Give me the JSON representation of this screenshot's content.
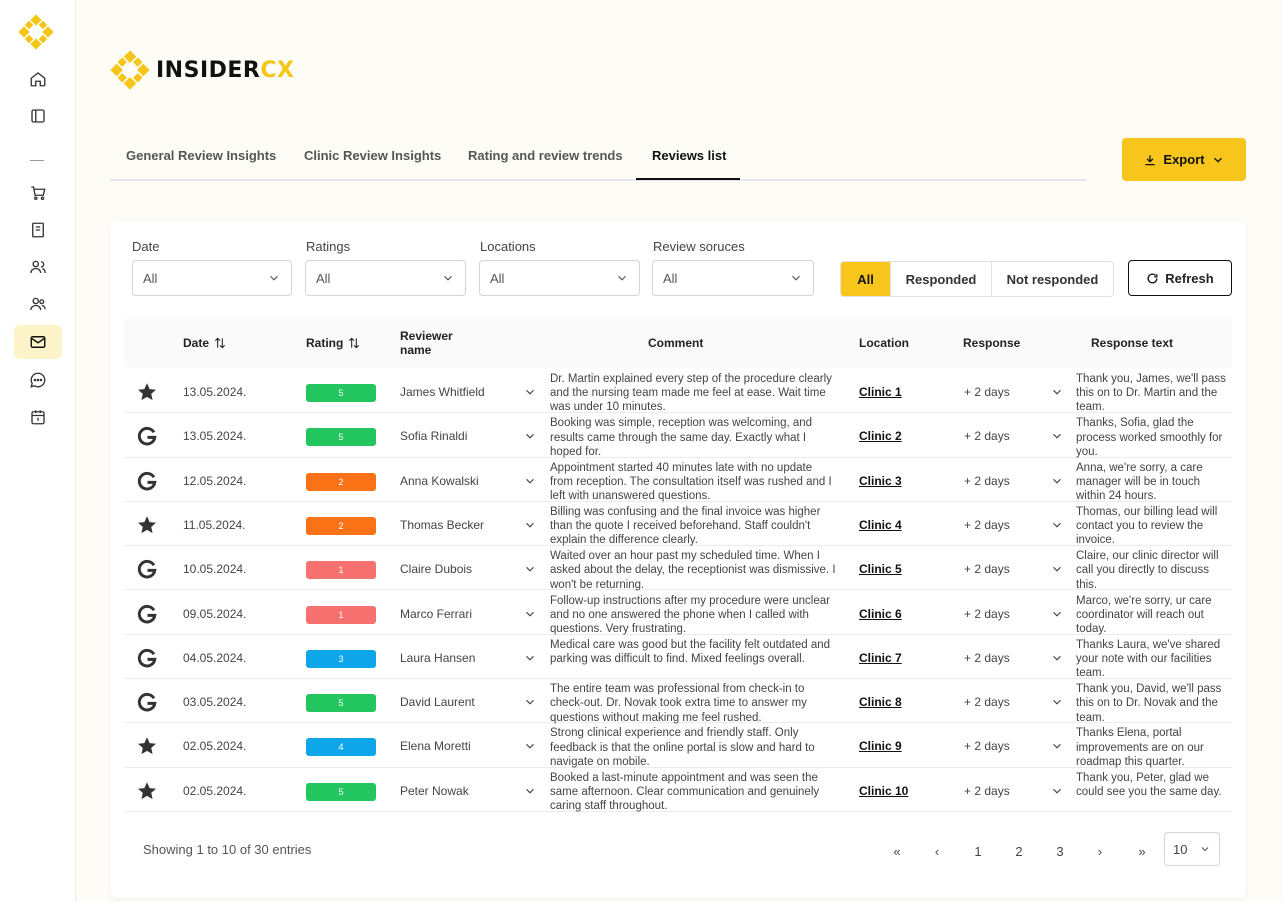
{
  "brand": {
    "name_main": "INSIDER",
    "name_accent": "CX"
  },
  "sidebar": {
    "items": [
      {
        "icon": "home-icon"
      },
      {
        "icon": "layout-icon"
      },
      {
        "icon": "cart-icon"
      },
      {
        "icon": "book-icon"
      },
      {
        "icon": "users-icon"
      },
      {
        "icon": "team-icon"
      },
      {
        "icon": "mail-icon",
        "active": true
      },
      {
        "icon": "chat-icon"
      },
      {
        "icon": "calendar-icon"
      }
    ]
  },
  "tabs": [
    {
      "label": "General Review Insights"
    },
    {
      "label": "Clinic Review Insights"
    },
    {
      "label": "Rating and review trends"
    },
    {
      "label": "Reviews list",
      "active": true
    }
  ],
  "export": {
    "label": "Export"
  },
  "filters": {
    "date": {
      "label": "Date",
      "value": "All"
    },
    "ratings": {
      "label": "Ratings",
      "value": "All"
    },
    "locations": {
      "label": "Locations",
      "value": "All"
    },
    "sources": {
      "label": "Review soruces",
      "value": "All"
    }
  },
  "segment": {
    "all": "All",
    "responded": "Responded",
    "not_responded": "Not responded"
  },
  "refresh": {
    "label": "Refresh"
  },
  "table": {
    "headers": {
      "date": "Date",
      "rating": "Rating",
      "reviewer": "Reviewer name",
      "comment": "Comment",
      "location": "Location",
      "response": "Response",
      "response_text": "Response text"
    },
    "rows": [
      {
        "source": "star",
        "date": "13.05.2024.",
        "rating": "5",
        "rating_color": "#22c55e",
        "reviewer": "James Whitfield",
        "comment": "Dr. Martin explained every step of the procedure clearly and the nursing team made me feel at ease. Wait time was under 10 minutes.",
        "location": "Clinic 1",
        "response": "+ 2 days",
        "response_text": "Thank you, James, we'll pass this on to Dr. Martin and the team."
      },
      {
        "source": "google",
        "date": "13.05.2024.",
        "rating": "5",
        "rating_color": "#22c55e",
        "reviewer": "Sofia Rinaldi",
        "comment": "Booking was simple, reception was welcoming, and results came through the same day. Exactly what I hoped for.",
        "location": "Clinic 2",
        "response": "+ 2 days",
        "response_text": "Thanks, Sofia, glad the process worked smoothly for you."
      },
      {
        "source": "google",
        "date": "12.05.2024.",
        "rating": "2",
        "rating_color": "#f97316",
        "reviewer": "Anna Kowalski",
        "comment": "Appointment started 40 minutes late with no update from reception. The consultation itself was rushed and I left with unanswered questions.",
        "location": "Clinic 3",
        "response": "+ 2 days",
        "response_text": "Anna, we're sorry, a care manager will be in touch within 24 hours."
      },
      {
        "source": "star",
        "date": "11.05.2024.",
        "rating": "2",
        "rating_color": "#f97316",
        "reviewer": "Thomas Becker",
        "comment": "Billing was confusing and the final invoice was higher than the quote I received beforehand. Staff couldn't explain the difference clearly.",
        "location": "Clinic 4",
        "response": "+ 2 days",
        "response_text": "Thomas, our billing lead will contact you to review the invoice."
      },
      {
        "source": "google",
        "date": "10.05.2024.",
        "rating": "1",
        "rating_color": "#f87171",
        "reviewer": "Claire Dubois",
        "comment": "Waited over an hour past my scheduled time. When I asked about the delay, the receptionist was dismissive. I won't be returning.",
        "location": "Clinic 5",
        "response": "+ 2 days",
        "response_text": "Claire, our clinic director will call you directly to discuss this."
      },
      {
        "source": "google",
        "date": "09.05.2024.",
        "rating": "1",
        "rating_color": "#f87171",
        "reviewer": "Marco Ferrari",
        "comment": "Follow-up instructions after my procedure were unclear and no one answered the phone when I called with questions. Very frustrating.",
        "location": "Clinic 6",
        "response": "+ 2 days",
        "response_text": "Marco, we're sorry, ur care coordinator will reach out today."
      },
      {
        "source": "google",
        "date": "04.05.2024.",
        "rating": "3",
        "rating_color": "#0ea5e9",
        "reviewer": "Laura Hansen",
        "comment": "Medical care was good but the facility felt outdated and parking was difficult to find. Mixed feelings overall.",
        "location": "Clinic 7",
        "response": "+ 2 days",
        "response_text": "Thanks Laura, we've shared your note with our facilities team."
      },
      {
        "source": "google",
        "date": "03.05.2024.",
        "rating": "5",
        "rating_color": "#22c55e",
        "reviewer": "David Laurent",
        "comment": "The entire team was professional from check-in to check-out. Dr. Novak took extra time to answer my questions without making me feel rushed.",
        "location": "Clinic 8",
        "response": "+ 2 days",
        "response_text": "Thank you, David, we'll pass this on to Dr. Novak and the team."
      },
      {
        "source": "star",
        "date": "02.05.2024.",
        "rating": "4",
        "rating_color": "#0ea5e9",
        "reviewer": "Elena Moretti",
        "comment": "Strong clinical experience and friendly staff. Only feedback is that the online portal is slow and hard to navigate on mobile.",
        "location": "Clinic 9",
        "response": "+ 2 days",
        "response_text": "Thanks Elena, portal improvements are on our roadmap this quarter."
      },
      {
        "source": "star",
        "date": "02.05.2024.",
        "rating": "5",
        "rating_color": "#22c55e",
        "reviewer": "Peter Nowak",
        "comment": "Booked a last-minute appointment and was seen the same afternoon. Clear communication and genuinely caring staff throughout.",
        "location": "Clinic 10",
        "response": "+ 2 days",
        "response_text": "Thank you, Peter, glad we could see you the same day."
      }
    ]
  },
  "footer": {
    "showing": "Showing 1 to 10 of 30 entries",
    "first": "«",
    "prev": "‹",
    "pages": [
      "1",
      "2",
      "3"
    ],
    "next": "›",
    "last": "»",
    "page_size": "10"
  },
  "colors": {
    "accent": "#f8c51c",
    "green": "#22c55e",
    "orange": "#f97316",
    "red": "#f87171",
    "blue": "#0ea5e9"
  }
}
